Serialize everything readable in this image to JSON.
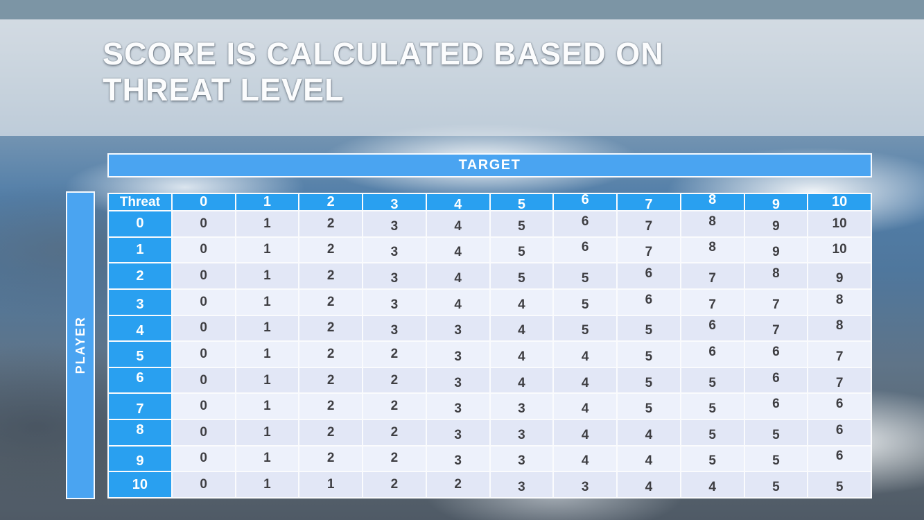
{
  "slide": {
    "title_line1": "SCORE IS CALCULATED BASED ON",
    "title_line2": "THREAT LEVEL"
  },
  "chart_data": {
    "type": "table",
    "title": "SCORE IS CALCULATED BASED ON THREAT LEVEL",
    "x_axis_label": "TARGET",
    "y_axis_label": "PLAYER",
    "corner_label": "Threat",
    "column_headers": [
      "0",
      "1",
      "2",
      "3",
      "4",
      "5",
      "6",
      "7",
      "8",
      "9",
      "10"
    ],
    "row_headers": [
      "0",
      "1",
      "2",
      "3",
      "4",
      "5",
      "6",
      "7",
      "8",
      "9",
      "10"
    ],
    "rows": [
      [
        "0",
        "1",
        "2",
        "3",
        "4",
        "5",
        "6",
        "7",
        "8",
        "9",
        "10"
      ],
      [
        "0",
        "1",
        "2",
        "3",
        "4",
        "5",
        "6",
        "7",
        "8",
        "9",
        "10"
      ],
      [
        "0",
        "1",
        "2",
        "3",
        "4",
        "5",
        "5",
        "6",
        "7",
        "8",
        "9"
      ],
      [
        "0",
        "1",
        "2",
        "3",
        "4",
        "4",
        "5",
        "6",
        "7",
        "7",
        "8"
      ],
      [
        "0",
        "1",
        "2",
        "3",
        "3",
        "4",
        "5",
        "5",
        "6",
        "7",
        "8"
      ],
      [
        "0",
        "1",
        "2",
        "2",
        "3",
        "4",
        "4",
        "5",
        "6",
        "6",
        "7"
      ],
      [
        "0",
        "1",
        "2",
        "2",
        "3",
        "4",
        "4",
        "5",
        "5",
        "6",
        "7"
      ],
      [
        "0",
        "1",
        "2",
        "2",
        "3",
        "3",
        "4",
        "5",
        "5",
        "6",
        "6"
      ],
      [
        "0",
        "1",
        "2",
        "2",
        "3",
        "3",
        "4",
        "4",
        "5",
        "5",
        "6"
      ],
      [
        "0",
        "1",
        "2",
        "2",
        "3",
        "3",
        "4",
        "4",
        "5",
        "5",
        "6"
      ],
      [
        "0",
        "1",
        "1",
        "2",
        "2",
        "3",
        "3",
        "4",
        "4",
        "5",
        "5"
      ]
    ]
  },
  "colors": {
    "top_bar": "#7c95a5",
    "accent_blue": "#4aa4f1",
    "header_blue": "#29a0f0",
    "row_band_dark": "#e2e7f6",
    "row_band_light": "#edf1fb",
    "cell_text": "#3e3e42",
    "grid_white": "#fafbfd"
  }
}
